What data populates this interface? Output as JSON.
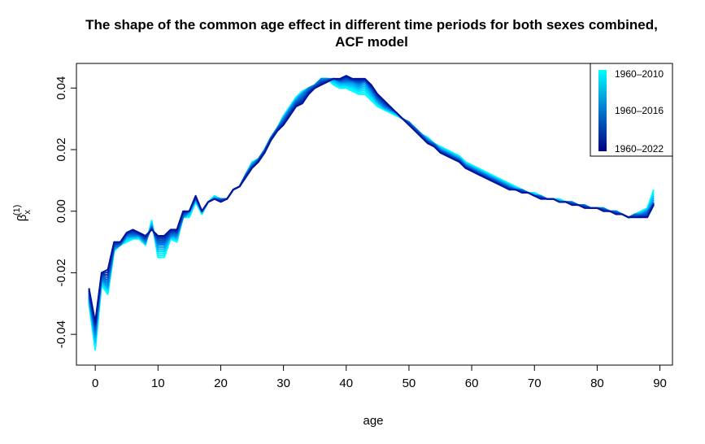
{
  "chart_data": {
    "type": "line",
    "title": "The shape of the common age effect in different time periods for both sexes combined,",
    "subtitle": "ACF model",
    "xlabel": "age",
    "ylabel": "β",
    "ylabel_subscript": "x",
    "ylabel_superscript": "(1)",
    "xlim": [
      -3,
      92
    ],
    "ylim": [
      -0.05,
      0.048
    ],
    "xticks": [
      0,
      10,
      20,
      30,
      40,
      50,
      60,
      70,
      80,
      90
    ],
    "xtick_labels": [
      "0",
      "10",
      "20",
      "30",
      "40",
      "50",
      "60",
      "70",
      "80",
      "90"
    ],
    "yticks": [
      -0.04,
      -0.02,
      0.0,
      0.02,
      0.04
    ],
    "ytick_labels": [
      "-0.04",
      "-0.02",
      "0.00",
      "0.02",
      "0.04"
    ],
    "grid": false,
    "legend": {
      "placement": "top-right",
      "type": "color-gradient",
      "labels": [
        "1960–2010",
        "1960–2016",
        "1960–2022"
      ],
      "colors": [
        "#00ffff",
        "#0077cc",
        "#000080"
      ]
    },
    "x": [
      -1,
      0,
      1,
      2,
      3,
      4,
      5,
      6,
      7,
      8,
      9,
      10,
      11,
      12,
      13,
      14,
      15,
      16,
      17,
      18,
      19,
      20,
      21,
      22,
      23,
      24,
      25,
      26,
      27,
      28,
      29,
      30,
      31,
      32,
      33,
      34,
      35,
      36,
      37,
      38,
      39,
      40,
      41,
      42,
      43,
      44,
      45,
      46,
      47,
      48,
      49,
      50,
      51,
      52,
      53,
      54,
      55,
      56,
      57,
      58,
      59,
      60,
      61,
      62,
      63,
      64,
      65,
      66,
      67,
      68,
      69,
      70,
      71,
      72,
      73,
      74,
      75,
      76,
      77,
      78,
      79,
      80,
      81,
      82,
      83,
      84,
      85,
      86,
      87,
      88,
      89
    ],
    "series": [
      {
        "period": "1960–2010",
        "values": [
          -0.03,
          -0.045,
          -0.024,
          -0.027,
          -0.013,
          -0.011,
          -0.01,
          -0.009,
          -0.009,
          -0.011,
          -0.003,
          -0.015,
          -0.015,
          -0.009,
          -0.01,
          -0.002,
          -0.002,
          0.003,
          -0.001,
          0.003,
          0.005,
          0.004,
          0.004,
          0.007,
          0.008,
          0.012,
          0.016,
          0.017,
          0.02,
          0.024,
          0.027,
          0.031,
          0.034,
          0.037,
          0.039,
          0.04,
          0.041,
          0.043,
          0.043,
          0.041,
          0.04,
          0.04,
          0.039,
          0.038,
          0.038,
          0.036,
          0.034,
          0.033,
          0.032,
          0.031,
          0.03,
          0.028,
          0.027,
          0.025,
          0.024,
          0.022,
          0.021,
          0.02,
          0.019,
          0.018,
          0.016,
          0.015,
          0.014,
          0.013,
          0.012,
          0.011,
          0.01,
          0.009,
          0.008,
          0.007,
          0.006,
          0.006,
          0.005,
          0.004,
          0.004,
          0.004,
          0.003,
          0.003,
          0.002,
          0.002,
          0.001,
          0.001,
          0.001,
          0.0,
          0.0,
          -0.001,
          -0.002,
          -0.001,
          0.0,
          0.001,
          0.007
        ]
      },
      {
        "period": "1960–2016",
        "values": [
          -0.028,
          -0.04,
          -0.022,
          -0.024,
          -0.012,
          -0.011,
          -0.008,
          -0.008,
          -0.008,
          -0.01,
          -0.005,
          -0.011,
          -0.011,
          -0.008,
          -0.008,
          -0.002,
          0.0,
          0.004,
          0.0,
          0.003,
          0.004,
          0.004,
          0.004,
          0.007,
          0.008,
          0.012,
          0.015,
          0.017,
          0.02,
          0.024,
          0.027,
          0.03,
          0.033,
          0.036,
          0.038,
          0.04,
          0.041,
          0.043,
          0.043,
          0.043,
          0.042,
          0.042,
          0.042,
          0.041,
          0.042,
          0.039,
          0.036,
          0.034,
          0.033,
          0.032,
          0.03,
          0.029,
          0.027,
          0.025,
          0.023,
          0.022,
          0.02,
          0.019,
          0.018,
          0.017,
          0.015,
          0.014,
          0.013,
          0.012,
          0.011,
          0.01,
          0.009,
          0.008,
          0.007,
          0.007,
          0.006,
          0.005,
          0.005,
          0.004,
          0.004,
          0.003,
          0.003,
          0.003,
          0.002,
          0.002,
          0.001,
          0.001,
          0.001,
          0.0,
          0.0,
          -0.001,
          -0.002,
          -0.001,
          -0.001,
          0.0,
          0.003
        ]
      },
      {
        "period": "1960–2022",
        "values": [
          -0.025,
          -0.036,
          -0.02,
          -0.019,
          -0.01,
          -0.01,
          -0.007,
          -0.006,
          -0.007,
          -0.008,
          -0.006,
          -0.008,
          -0.008,
          -0.006,
          -0.006,
          0.0,
          0.0,
          0.005,
          0.0,
          0.003,
          0.004,
          0.003,
          0.004,
          0.007,
          0.008,
          0.011,
          0.014,
          0.016,
          0.019,
          0.023,
          0.026,
          0.028,
          0.031,
          0.034,
          0.035,
          0.038,
          0.04,
          0.041,
          0.042,
          0.043,
          0.043,
          0.044,
          0.043,
          0.043,
          0.043,
          0.041,
          0.038,
          0.036,
          0.034,
          0.032,
          0.03,
          0.028,
          0.026,
          0.024,
          0.022,
          0.021,
          0.019,
          0.018,
          0.017,
          0.016,
          0.014,
          0.013,
          0.012,
          0.011,
          0.01,
          0.009,
          0.008,
          0.007,
          0.007,
          0.006,
          0.006,
          0.005,
          0.004,
          0.004,
          0.004,
          0.003,
          0.003,
          0.002,
          0.002,
          0.001,
          0.001,
          0.001,
          0.0,
          0.0,
          -0.001,
          -0.001,
          -0.002,
          -0.002,
          -0.002,
          -0.002,
          0.002
        ]
      }
    ]
  }
}
